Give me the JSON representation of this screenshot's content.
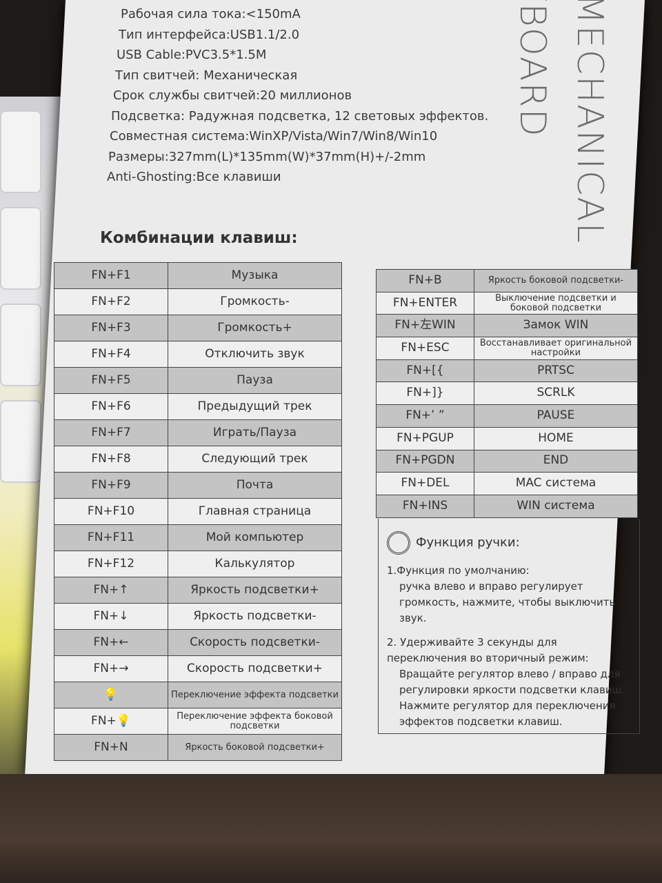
{
  "specs": [
    "Рабочая сила тока:<150mA",
    "Тип интерфейса:USB1.1/2.0",
    "USB Cable:PVC3.5*1.5M",
    "Тип свитчей: Механическая",
    "Срок службы свитчей:20 миллионов",
    "Подсветка: Радужная подсветка, 12 световых эффектов.",
    "Совместная система:WinXP/Vista/Win7/Win8/Win10",
    "Размеры:327mm(L)*135mm(W)*37mm(H)+/-2mm",
    "Anti-Ghosting:Все клавиши"
  ],
  "vertical_text": {
    "line1": "MECHANICAL",
    "line2": "KEYBOARD"
  },
  "section_title": "Комбинации клавиш:",
  "left_table": [
    [
      "FN+F1",
      "Музыка"
    ],
    [
      "FN+F2",
      "Громкость-"
    ],
    [
      "FN+F3",
      "Громкость+"
    ],
    [
      "FN+F4",
      "Отключить звук"
    ],
    [
      "FN+F5",
      "Пауза"
    ],
    [
      "FN+F6",
      "Предыдущий трек"
    ],
    [
      "FN+F7",
      "Играть/Пауза"
    ],
    [
      "FN+F8",
      "Следующий трек"
    ],
    [
      "FN+F9",
      "Почта"
    ],
    [
      "FN+F10",
      "Главная страница"
    ],
    [
      "FN+F11",
      "Мой компьютер"
    ],
    [
      "FN+F12",
      "Калькулятор"
    ],
    [
      "FN+↑",
      "Яркость подсветки+"
    ],
    [
      "FN+↓",
      "Яркость подсветки-"
    ],
    [
      "FN+←",
      "Скорость подсветки-"
    ],
    [
      "FN+→",
      "Скорость подсветки+"
    ],
    [
      "💡",
      "Переключение эффекта подсветки"
    ],
    [
      "FN+💡",
      "Переключение эффекта боковой подсветки"
    ],
    [
      "FN+N",
      "Яркость боковой подсветки+"
    ]
  ],
  "right_table": [
    [
      "FN+B",
      "Яркость боковой подсветки-"
    ],
    [
      "FN+ENTER",
      "Выключение подсветки и боковой подсветки"
    ],
    [
      "FN+左WIN",
      "Замок WIN"
    ],
    [
      "FN+ESC",
      "Восстанавливает оригинальной настройки"
    ],
    [
      "FN+[{",
      "PRTSC"
    ],
    [
      "FN+]}",
      "SCRLK"
    ],
    [
      "FN+’ ”",
      "PAUSE"
    ],
    [
      "FN+PGUP",
      "HOME"
    ],
    [
      "FN+PGDN",
      "END"
    ],
    [
      "FN+DEL",
      "MAC система"
    ],
    [
      "FN+INS",
      "WIN система"
    ]
  ],
  "knob": {
    "title": "Функция ручки:",
    "item1_title": "1.Функция по умолчанию:",
    "item1_text": "ручка влево и вправо регулирует громкость, нажмите, чтобы выключить звук.",
    "item2_title": "2. Удерживайте 3 секунды для переключения во вторичный режим:",
    "item2_text": "Вращайте регулятор влево / вправо для регулировки яркости подсветки клавиш. Нажмите регулятор для переключения эффектов подсветки клавиш."
  }
}
